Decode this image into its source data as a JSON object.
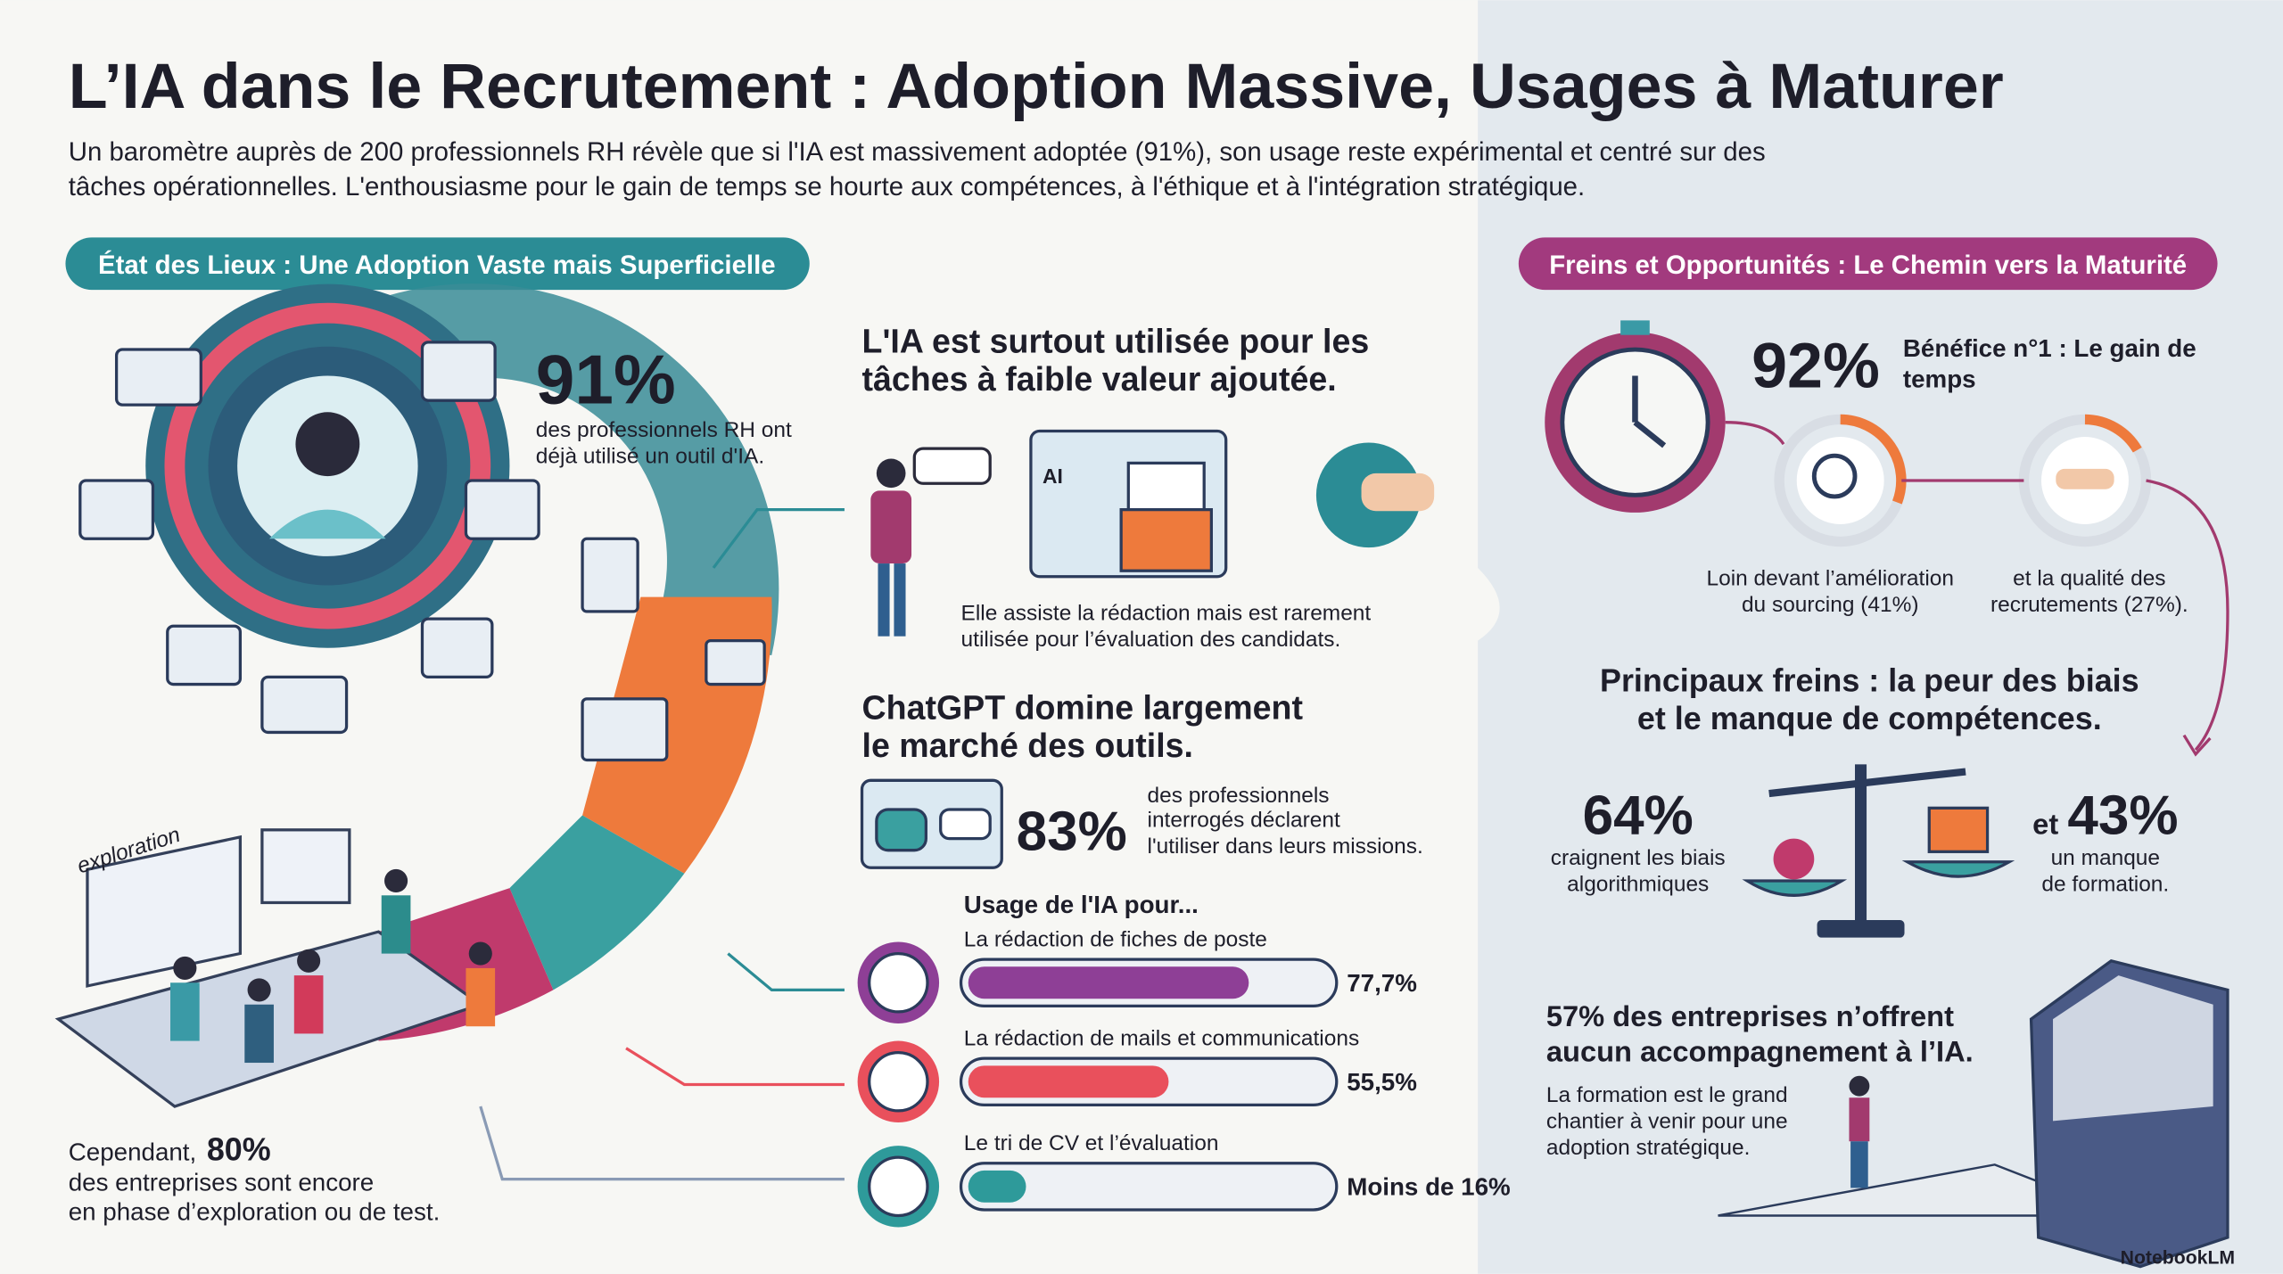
{
  "header": {
    "title": "L’IA dans le Recrutement : Adoption Massive, Usages à Maturer",
    "subtitle": [
      "Un baromètre auprès de 200 professionnels RH révèle que si l'IA est massivement adoptée (91%), son usage reste expérimental et centré sur des",
      "tâches opérationnelles. L'enthousiasme pour le gain de temps se hourte aux compétences, à l'éthique et à l'intégration stratégique."
    ]
  },
  "left": {
    "badge": "État des Lieux : Une Adoption Vaste mais Superficielle",
    "stat1": {
      "value": "91%",
      "lines": [
        "des professionnels RH ont",
        "déjà utilisé un outil d'IA."
      ]
    },
    "exploration_label": "exploration",
    "stat2": {
      "prefix": "Cependant,",
      "value": "80%",
      "lines": [
        "des entreprises sont encore",
        "en phase d’exploration ou de test."
      ]
    }
  },
  "middle": {
    "block1": {
      "title": [
        "L'IA est surtout utilisée pour les",
        "tâches à faible valeur ajoutée."
      ],
      "icon_text": "AI",
      "caption": [
        "Elle assiste la rédaction mais est rarement",
        "utilisée pour l’évaluation des candidats."
      ]
    },
    "block2": {
      "title": [
        "ChatGPT domine largement",
        "le marché des outils."
      ],
      "stat": "83%",
      "lines": [
        "des professionnels",
        "interrogés déclarent",
        "l'utiliser dans leurs missions."
      ]
    }
  },
  "usage": {
    "title": "Usage de l'IA pour...",
    "items": [
      {
        "label": "La rédaction de fiches de poste",
        "value": 77.7,
        "value_label": "77,7%",
        "color": "#8e3f96"
      },
      {
        "label": "La rédaction de mails et communications",
        "value": 55.5,
        "value_label": "55,5%",
        "color": "#e9505c"
      },
      {
        "label": "Le tri de CV et l’évaluation",
        "value": 16,
        "value_label": "Moins de 16%",
        "color": "#2e9a9a"
      }
    ]
  },
  "right": {
    "badge": "Freins et Opportunités : Le Chemin vers la Maturité",
    "benefit": {
      "value": "92%",
      "lines": [
        "Bénéfice n°1 : Le gain de",
        "temps"
      ]
    },
    "captions": [
      [
        "Loin devant l’amélioration",
        "du sourcing (41%)"
      ],
      [
        "et la qualité des",
        "recrutements (27%)."
      ]
    ],
    "brakes": {
      "title": [
        "Principaux freins : la peur des biais",
        "et le manque de compétences."
      ],
      "stat1": {
        "value": "64%",
        "lines": [
          "craignent les biais",
          "algorithmiques"
        ]
      },
      "stat2": {
        "prefix": "et",
        "value": "43%",
        "lines": [
          "un manque",
          "de formation."
        ]
      }
    },
    "support": {
      "title": [
        "57% des entreprises n’offrent",
        "aucun accompagnement à l’IA."
      ],
      "lines": [
        "La formation est le grand",
        "chantier à venir pour une",
        "adoption stratégique."
      ]
    }
  },
  "footer": "NotebookLM"
}
